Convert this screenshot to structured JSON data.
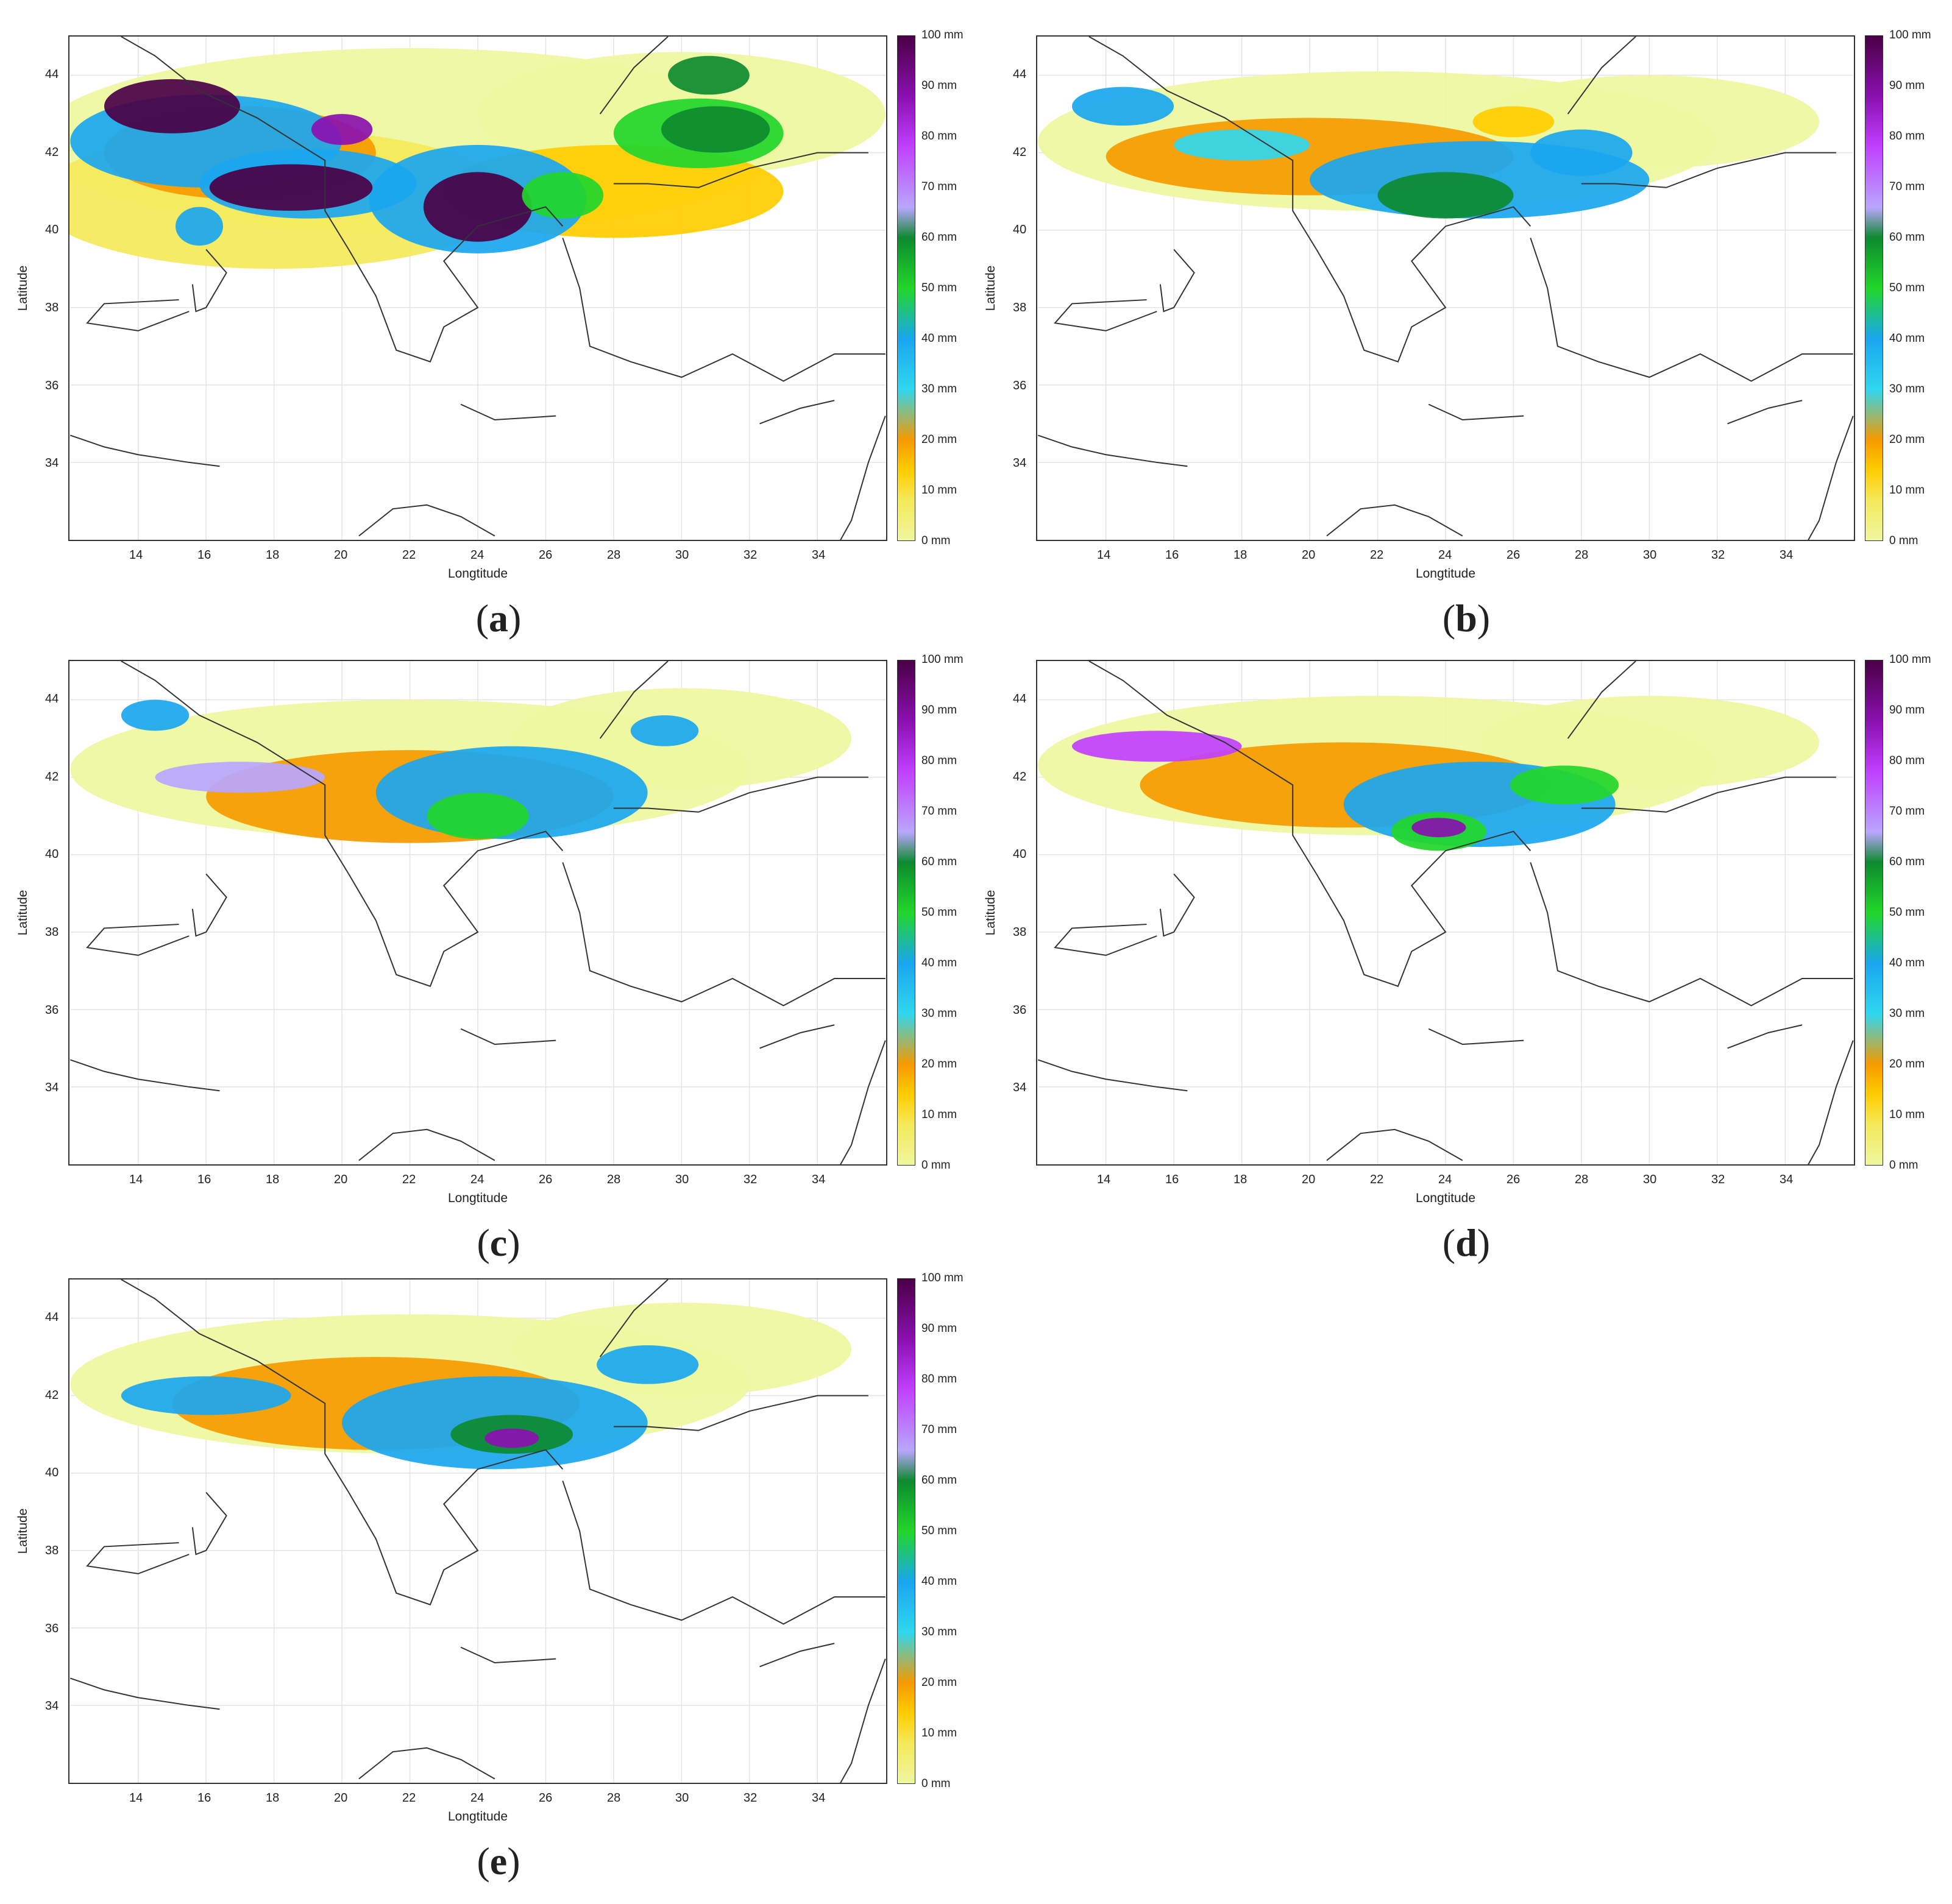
{
  "figure": {
    "panels": [
      {
        "id": "a",
        "label_open": "(",
        "label_letter": "a",
        "label_close": ")"
      },
      {
        "id": "b",
        "label_open": "(",
        "label_letter": "b",
        "label_close": ")"
      },
      {
        "id": "c",
        "label_open": "(",
        "label_letter": "c",
        "label_close": ")"
      },
      {
        "id": "d",
        "label_open": "(",
        "label_letter": "d",
        "label_close": ")"
      },
      {
        "id": "e",
        "label_open": "(",
        "label_letter": "e",
        "label_close": ")"
      }
    ],
    "xlabel": "Longtitude",
    "ylabel": "Latitude",
    "x_ticks": [
      "14",
      "16",
      "18",
      "20",
      "22",
      "24",
      "26",
      "28",
      "30",
      "32",
      "34"
    ],
    "y_ticks": [
      "34",
      "36",
      "38",
      "40",
      "42",
      "44"
    ],
    "colorbar_labels": [
      "100 mm",
      "90 mm",
      "80 mm",
      "70 mm",
      "60 mm",
      "50 mm",
      "40 mm",
      "30 mm",
      "20 mm",
      "10 mm",
      "0 mm"
    ],
    "colorbar_colors": [
      "#eef7a0",
      "#f4e95a",
      "#ffcc00",
      "#f59a00",
      "#2fd7ef",
      "#1aa6ef",
      "#22d62a",
      "#0d8a2f",
      "#b9a6ff",
      "#c040ff",
      "#8a10b0",
      "#4a0046"
    ]
  },
  "chart_data": {
    "type": "heatmap",
    "lon_range": [
      12,
      36
    ],
    "lat_range": [
      32,
      45
    ],
    "value_range_mm": [
      0,
      100
    ],
    "grid": true
  }
}
